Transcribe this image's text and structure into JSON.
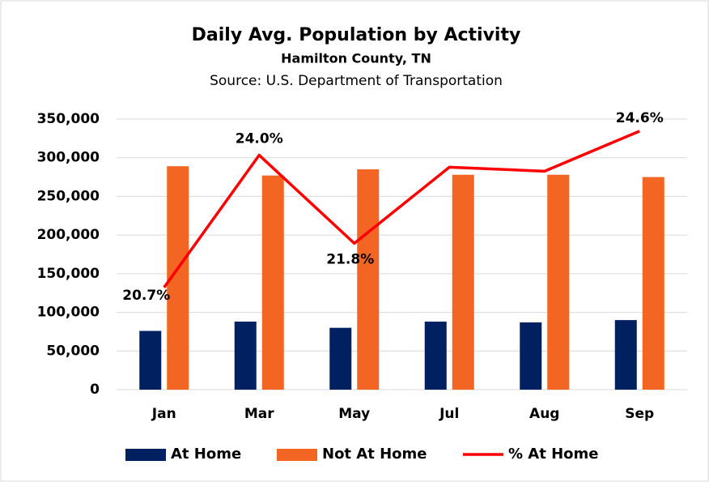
{
  "chart_data": {
    "type": "bar_line",
    "title": "Daily Avg. Population by Activity",
    "subtitle": "Hamilton County, TN",
    "source": "Source: U.S. Department of Transportation",
    "categories": [
      "Jan",
      "Mar",
      "May",
      "Jul",
      "Aug",
      "Sep"
    ],
    "series": [
      {
        "name": "At Home",
        "type": "bar",
        "color": "#002060",
        "values": [
          76000,
          88000,
          80000,
          88000,
          87000,
          90000
        ]
      },
      {
        "name": "Not At Home",
        "type": "bar",
        "color": "#f26522",
        "values": [
          289000,
          277000,
          285000,
          278000,
          278000,
          275000
        ]
      },
      {
        "name": "% At Home",
        "type": "line",
        "axis": "y2",
        "color": "#ff0000",
        "values": [
          20.7,
          24.0,
          21.8,
          23.7,
          23.6,
          24.6
        ],
        "value_labels": [
          "20.7%",
          "24.0%",
          "21.8%",
          null,
          null,
          "24.6%"
        ]
      }
    ],
    "ylim": [
      0,
      350000
    ],
    "yticks": [
      {
        "value": 0,
        "label": "0"
      },
      {
        "value": 50000,
        "label": "50,000"
      },
      {
        "value": 100000,
        "label": "100,000"
      },
      {
        "value": 150000,
        "label": "150,000"
      },
      {
        "value": 200000,
        "label": "200,000"
      },
      {
        "value": 250000,
        "label": "250,000"
      },
      {
        "value": 300000,
        "label": "300,000"
      },
      {
        "value": 350000,
        "label": "350,000"
      }
    ],
    "y2lim": [
      18.15,
      24.9
    ],
    "grid": true,
    "legend": "bottom"
  }
}
